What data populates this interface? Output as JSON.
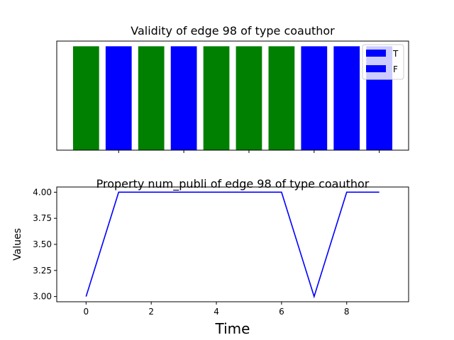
{
  "chart_data": [
    {
      "type": "bar",
      "title": "Validity of edge 98 of type coauthor",
      "x": [
        0,
        1,
        2,
        3,
        4,
        5,
        6,
        7,
        8,
        9
      ],
      "values": [
        1,
        1,
        1,
        1,
        1,
        1,
        1,
        1,
        1,
        1
      ],
      "validity": [
        "T",
        "F",
        "T",
        "F",
        "T",
        "T",
        "T",
        "F",
        "F",
        "F"
      ],
      "colors": {
        "T": "#008000",
        "F": "#0000ff"
      },
      "legend": [
        {
          "label": "T",
          "color": "#0000ff"
        },
        {
          "label": "F",
          "color": "#0000ff"
        }
      ],
      "legend_position": "top-right",
      "xlim": [
        -0.9,
        9.9
      ],
      "ylim": [
        0,
        1.05
      ],
      "x_ticks_shown": [
        1,
        3,
        5,
        7,
        9
      ],
      "y_axis_visible": false,
      "grid": false
    },
    {
      "type": "line",
      "title": "Property num_publi of edge 98 of type coauthor",
      "x": [
        0,
        1,
        2,
        3,
        4,
        5,
        6,
        7,
        8,
        9
      ],
      "y": [
        3.0,
        4.0,
        4.0,
        4.0,
        4.0,
        4.0,
        4.0,
        3.0,
        4.0,
        4.0
      ],
      "line_color": "#0000ff",
      "xlabel": "Time",
      "ylabel": "Values",
      "xlim": [
        -0.9,
        9.9
      ],
      "ylim": [
        2.95,
        4.05
      ],
      "xticks": [
        "0",
        "2",
        "4",
        "6",
        "8"
      ],
      "yticks": [
        "3.00",
        "3.25",
        "3.50",
        "3.75",
        "4.00"
      ],
      "grid": false
    }
  ]
}
